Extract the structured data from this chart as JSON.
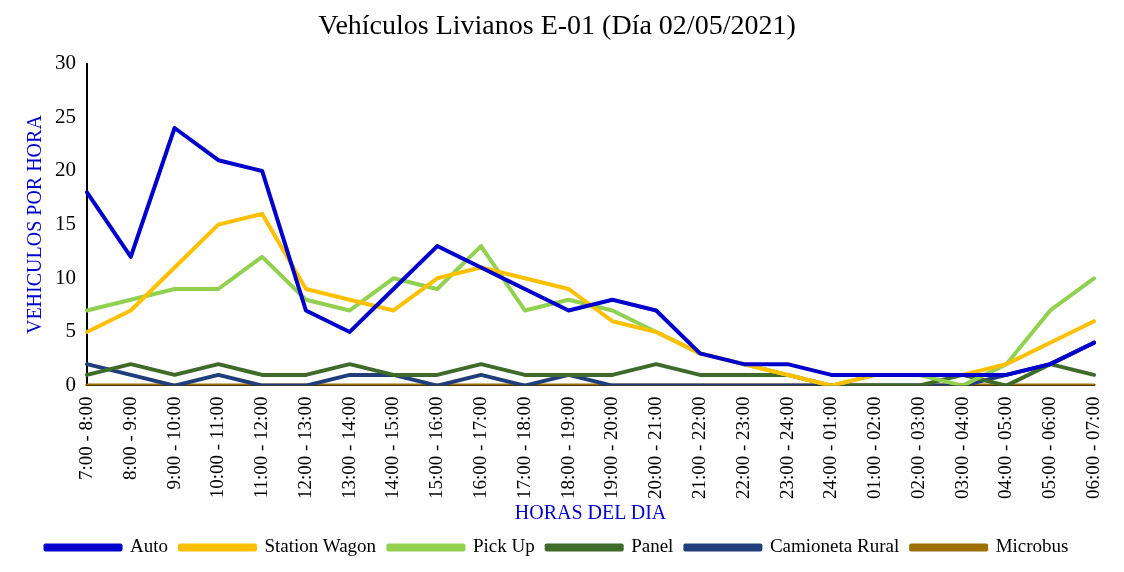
{
  "chart_data": {
    "type": "line",
    "title": "Vehículos Livianos E-01 (Día 02/05/2021)",
    "xlabel": "HORAS DEL DIA",
    "ylabel": "VEHICULOS POR HORA",
    "categories": [
      "7:00 - 8:00",
      "8:00 - 9:00",
      "9:00 - 10:00",
      "10:00 - 11:00",
      "11:00 - 12:00",
      "12:00 - 13:00",
      "13:00 - 14:00",
      "14:00 - 15:00",
      "15:00 - 16:00",
      "16:00 - 17:00",
      "17:00 - 18:00",
      "18:00 - 19:00",
      "19:00 - 20:00",
      "20:00 - 21:00",
      "21:00 - 22:00",
      "22:00 - 23:00",
      "23:00 - 24:00",
      "24:00 - 01:00",
      "01:00 - 02:00",
      "02:00 - 03:00",
      "03:00 - 04:00",
      "04:00 - 05:00",
      "05:00 - 06:00",
      "06:00 - 07:00"
    ],
    "series": [
      {
        "name": "Auto",
        "color": "#0000cc",
        "values": [
          18,
          12,
          24,
          21,
          20,
          7,
          5,
          9,
          13,
          11,
          9,
          7,
          8,
          7,
          3,
          2,
          2,
          1,
          1,
          1,
          1,
          1,
          2,
          4
        ]
      },
      {
        "name": "Station Wagon",
        "color": "#ffc000",
        "values": [
          5,
          7,
          11,
          15,
          16,
          9,
          8,
          7,
          10,
          11,
          10,
          9,
          6,
          5,
          3,
          2,
          1,
          0,
          1,
          1,
          1,
          2,
          4,
          6
        ]
      },
      {
        "name": "Pick Up",
        "color": "#92d050",
        "values": [
          7,
          8,
          9,
          9,
          12,
          8,
          7,
          10,
          9,
          13,
          7,
          8,
          7,
          5,
          3,
          2,
          1,
          0,
          1,
          1,
          0,
          2,
          7,
          10
        ]
      },
      {
        "name": "Panel",
        "color": "#3f6b2a",
        "values": [
          1,
          2,
          1,
          2,
          1,
          1,
          2,
          1,
          1,
          2,
          1,
          1,
          1,
          2,
          1,
          1,
          1,
          0,
          0,
          0,
          1,
          0,
          2,
          1
        ]
      },
      {
        "name": "Camioneta Rural",
        "color": "#203f7a",
        "values": [
          2,
          1,
          0,
          1,
          0,
          0,
          1,
          1,
          0,
          1,
          0,
          1,
          0,
          0,
          0,
          0,
          0,
          0,
          0,
          0,
          0,
          1,
          2,
          4
        ]
      },
      {
        "name": "Microbus",
        "color": "#9c6f00",
        "values": [
          0,
          0,
          0,
          0,
          0,
          0,
          0,
          0,
          0,
          0,
          0,
          0,
          0,
          0,
          0,
          0,
          0,
          0,
          0,
          0,
          0,
          0,
          0,
          0
        ]
      }
    ],
    "ylim": [
      0,
      30
    ],
    "yticks": [
      0,
      5,
      10,
      15,
      20,
      25,
      30
    ],
    "grid": false,
    "legend": "bottom",
    "marker": "none",
    "line_style": "solid"
  }
}
